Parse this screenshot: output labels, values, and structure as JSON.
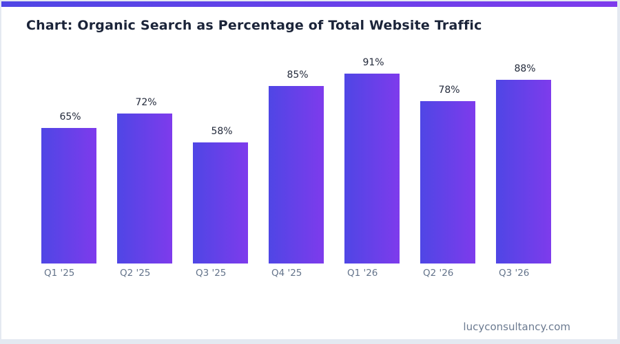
{
  "page": {
    "title": "Chart: Organic Search as Percentage of Total Website Traffic",
    "footer": "lucyconsultancy.com"
  },
  "theme": {
    "page_background": "#e4e9f1",
    "card_background": "#ffffff",
    "accent_gradient_start": "#4f46e5",
    "accent_gradient_end": "#7e3bec",
    "title_color": "#1b2439",
    "value_label_color": "#232a3b",
    "axis_label_color": "#64748b",
    "footer_color": "#6b7a90"
  },
  "chart_data": {
    "type": "bar",
    "title": "Chart: Organic Search as Percentage of Total Website Traffic",
    "categories": [
      "Q1 '25",
      "Q2 '25",
      "Q3 '25",
      "Q4 '25",
      "Q1 '26",
      "Q2 '26",
      "Q3 '26"
    ],
    "values": [
      65,
      72,
      58,
      85,
      91,
      78,
      88
    ],
    "value_labels": [
      "65%",
      "72%",
      "58%",
      "85%",
      "91%",
      "78%",
      "88%"
    ],
    "xlabel": "",
    "ylabel": "",
    "ylim": [
      0,
      100
    ],
    "grid": false,
    "legend": false,
    "bar_gradient": [
      "#4f46e5",
      "#7e3bec"
    ],
    "value_labels_position": "above-bars",
    "axes_visible": false
  }
}
